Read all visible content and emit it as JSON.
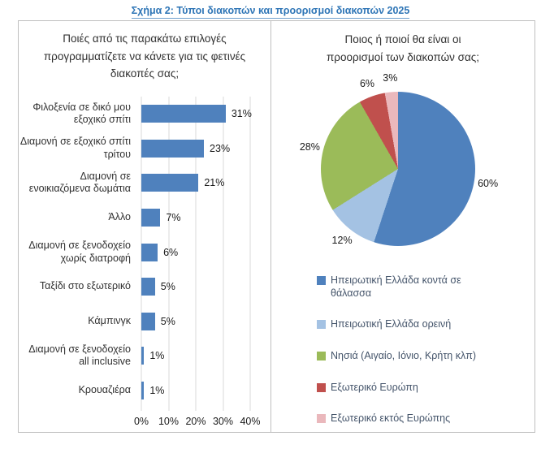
{
  "figure_title": "Σχήμα 2: Τύποι διακοπών και προορισμοί διακοπών 2025",
  "accent_colors": {
    "title_blue": "#2E75B6",
    "bar_blue": "#4F81BD",
    "grid_gray": "#D9D9D9",
    "panel_border_gray": "#BFBFBF"
  },
  "chart_data": [
    {
      "type": "bar",
      "orientation": "horizontal",
      "title": "Ποιές από τις παρακάτω επιλογές προγραμματίζετε να κάνετε για τις φετινές διακοπές σας;",
      "categories": [
        "Φιλοξενία σε δικό μου εξοχικό σπίτι",
        "Διαμονή σε εξοχικό σπίτι τρίτου",
        "Διαμονή σε ενοικιαζόμενα δωμάτια",
        "Άλλο",
        "Διαμονή σε ξενοδοχείο χωρίς διατροφή",
        "Ταξίδι στο εξωτερικό",
        "Κάμπινγκ",
        "Διαμονή σε ξενοδοχείο all inclusive",
        "Κρουαζιέρα"
      ],
      "values": [
        31,
        23,
        21,
        7,
        6,
        5,
        5,
        1,
        1
      ],
      "value_labels": [
        "31%",
        "23%",
        "21%",
        "7%",
        "6%",
        "5%",
        "5%",
        "1%",
        "1%"
      ],
      "xlim": [
        0,
        40
      ],
      "x_tick_labels": [
        "0%",
        "10%",
        "20%",
        "30%",
        "40%"
      ],
      "bar_color": "#4F81BD",
      "grid": "vertical-light-gray"
    },
    {
      "type": "pie",
      "title": "Ποιος ή ποιοί θα είναι οι προορισμοί των διακοπών σας;",
      "start_angle_deg": 0,
      "direction": "clockwise",
      "slices": [
        {
          "label": "Ηπειρωτική Ελλάδα κοντά σε θάλασσα",
          "value": 60,
          "value_label": "60%",
          "color": "#4F81BD"
        },
        {
          "label": "Ηπειρωτική Ελλάδα ορεινή",
          "value": 12,
          "value_label": "12%",
          "color": "#A4C2E3"
        },
        {
          "label": "Νησιά (Αιγαίο, Ιόνιο, Κρήτη κλπ)",
          "value": 28,
          "value_label": "28%",
          "color": "#9BBB59"
        },
        {
          "label": "Εξωτερικό Ευρώπη",
          "value": 6,
          "value_label": "6%",
          "color": "#C0504D"
        },
        {
          "label": "Εξωτερικό εκτός Ευρώπης",
          "value": 3,
          "value_label": "3%",
          "color": "#EAB8BC"
        }
      ],
      "legend_position": "bottom-left"
    }
  ]
}
